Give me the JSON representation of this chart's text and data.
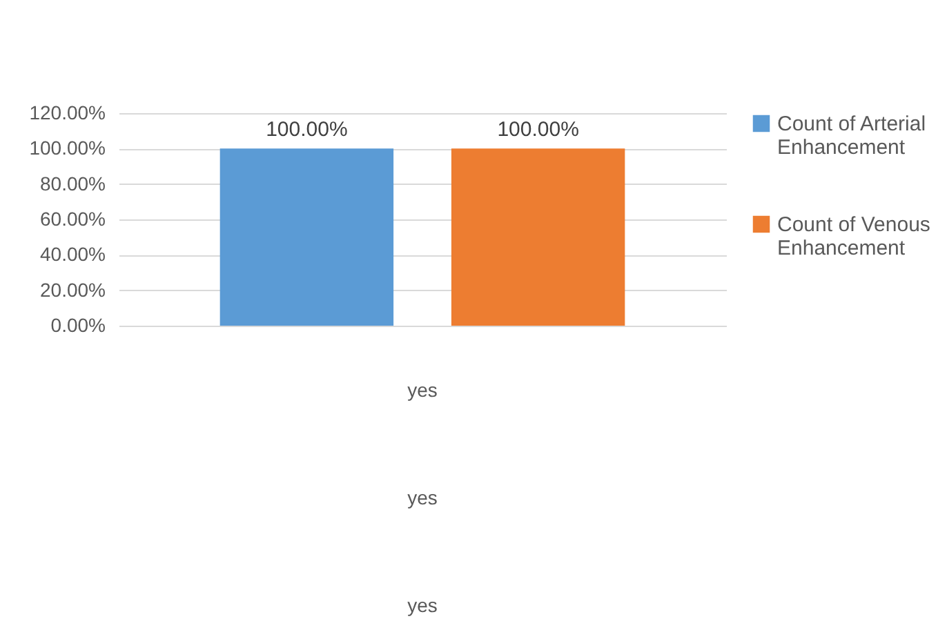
{
  "chart_data": {
    "type": "bar",
    "categories": [
      "yes\nyes\nyes"
    ],
    "series": [
      {
        "name": "Count of Arterial Enhancement",
        "color": "#5b9bd5",
        "values": [
          100
        ]
      },
      {
        "name": "Count of Venous Enhancement",
        "color": "#ed7d31",
        "values": [
          100
        ]
      }
    ],
    "value_labels": [
      [
        "100.00%"
      ],
      [
        "100.00%"
      ]
    ],
    "ylim": [
      0,
      120
    ],
    "yticks": [
      {
        "value": 0,
        "label": "0.00%"
      },
      {
        "value": 20,
        "label": "20.00%"
      },
      {
        "value": 40,
        "label": "40.00%"
      },
      {
        "value": 60,
        "label": "60.00%"
      },
      {
        "value": 80,
        "label": "80.00%"
      },
      {
        "value": 100,
        "label": "100.00%"
      },
      {
        "value": 120,
        "label": "120.00%"
      }
    ],
    "grid": "y",
    "legend": "right"
  }
}
